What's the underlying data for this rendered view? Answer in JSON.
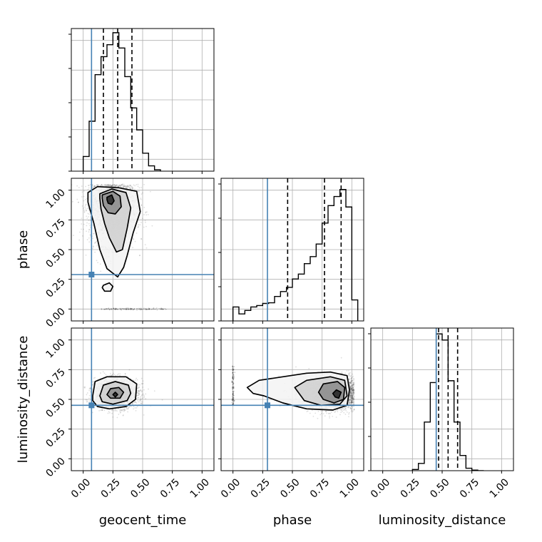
{
  "colors": {
    "truth": "#4682b4",
    "hist": "#000000",
    "grid": "#b0b0b0",
    "scatter": "#000000"
  },
  "chart_data": {
    "type": "corner",
    "parameters": [
      "geocent_time",
      "phase",
      "luminosity_distance"
    ],
    "truths": [
      0.07,
      0.29,
      0.45
    ],
    "axis_range": [
      -0.1,
      1.1
    ],
    "ticks": [
      0.0,
      0.25,
      0.5,
      0.75,
      1.0
    ],
    "tick_labels": [
      "0.00",
      "0.25",
      "0.50",
      "0.75",
      "1.00"
    ],
    "grid": true,
    "histograms": [
      {
        "param": "geocent_time",
        "bin_edges": [
          0.0,
          0.05,
          0.1,
          0.15,
          0.2,
          0.25,
          0.3,
          0.35,
          0.4,
          0.45,
          0.5,
          0.55,
          0.6,
          0.65
        ],
        "counts": [
          22,
          75,
          145,
          172,
          190,
          208,
          185,
          142,
          95,
          62,
          27,
          8,
          2
        ],
        "ymax": 210,
        "quantiles": [
          0.17,
          0.29,
          0.41
        ]
      },
      {
        "param": "phase",
        "bin_edges": [
          0.0,
          0.05,
          0.1,
          0.15,
          0.2,
          0.25,
          0.3,
          0.35,
          0.4,
          0.45,
          0.5,
          0.55,
          0.6,
          0.65,
          0.7,
          0.75,
          0.8,
          0.85,
          0.9,
          0.95,
          1.0,
          1.05
        ],
        "counts": [
          20,
          10,
          15,
          20,
          22,
          25,
          26,
          35,
          42,
          48,
          60,
          67,
          82,
          92,
          110,
          140,
          165,
          178,
          188,
          163,
          30
        ],
        "ymax": 200,
        "quantiles": [
          0.46,
          0.77,
          0.91
        ]
      },
      {
        "param": "luminosity_distance",
        "bin_edges": [
          0.25,
          0.3,
          0.35,
          0.4,
          0.45,
          0.5,
          0.55,
          0.6,
          0.65,
          0.7,
          0.75,
          0.8,
          0.85
        ],
        "counts": [
          2,
          12,
          80,
          145,
          225,
          215,
          148,
          80,
          25,
          4,
          1,
          0
        ],
        "ymax": 230,
        "quantiles": [
          0.47,
          0.55,
          0.63
        ]
      }
    ],
    "contour_panels": [
      {
        "x": "geocent_time",
        "y": "phase",
        "center": [
          0.25,
          0.86
        ],
        "spread": [
          0.1,
          0.16
        ],
        "points": 2400,
        "levels": [
          [
            [
              0.04,
              0.98
            ],
            [
              0.12,
              1.03
            ],
            [
              0.3,
              1.02
            ],
            [
              0.45,
              0.99
            ],
            [
              0.48,
              0.82
            ],
            [
              0.42,
              0.64
            ],
            [
              0.37,
              0.45
            ],
            [
              0.34,
              0.35
            ],
            [
              0.29,
              0.27
            ],
            [
              0.2,
              0.34
            ],
            [
              0.14,
              0.5
            ],
            [
              0.09,
              0.72
            ],
            [
              0.04,
              0.9
            ]
          ],
          [
            [
              0.14,
              0.97
            ],
            [
              0.24,
              1.01
            ],
            [
              0.36,
              0.98
            ],
            [
              0.4,
              0.85
            ],
            [
              0.37,
              0.68
            ],
            [
              0.33,
              0.5
            ],
            [
              0.28,
              0.48
            ],
            [
              0.22,
              0.6
            ],
            [
              0.18,
              0.72
            ],
            [
              0.15,
              0.84
            ],
            [
              0.14,
              0.93
            ]
          ],
          [
            [
              0.16,
              0.96
            ],
            [
              0.25,
              0.99
            ],
            [
              0.31,
              0.95
            ],
            [
              0.32,
              0.86
            ],
            [
              0.27,
              0.8
            ],
            [
              0.21,
              0.81
            ],
            [
              0.17,
              0.87
            ],
            [
              0.16,
              0.93
            ]
          ],
          [
            [
              0.2,
              0.94
            ],
            [
              0.24,
              0.96
            ],
            [
              0.26,
              0.91
            ],
            [
              0.24,
              0.88
            ],
            [
              0.21,
              0.89
            ],
            [
              0.2,
              0.92
            ]
          ],
          [
            [
              0.17,
              0.2
            ],
            [
              0.22,
              0.22
            ],
            [
              0.25,
              0.19
            ],
            [
              0.23,
              0.15
            ],
            [
              0.18,
              0.15
            ],
            [
              0.16,
              0.18
            ]
          ]
        ]
      },
      {
        "x": "geocent_time",
        "y": "luminosity_distance",
        "center": [
          0.28,
          0.55
        ],
        "spread": [
          0.09,
          0.06
        ],
        "points": 2400,
        "levels": [
          [
            [
              0.08,
              0.53
            ],
            [
              0.1,
              0.65
            ],
            [
              0.2,
              0.69
            ],
            [
              0.36,
              0.69
            ],
            [
              0.45,
              0.63
            ],
            [
              0.44,
              0.5
            ],
            [
              0.36,
              0.44
            ],
            [
              0.22,
              0.42
            ],
            [
              0.12,
              0.44
            ],
            [
              0.08,
              0.49
            ]
          ],
          [
            [
              0.14,
              0.53
            ],
            [
              0.17,
              0.62
            ],
            [
              0.27,
              0.65
            ],
            [
              0.38,
              0.62
            ],
            [
              0.4,
              0.55
            ],
            [
              0.37,
              0.49
            ],
            [
              0.25,
              0.46
            ],
            [
              0.16,
              0.48
            ]
          ],
          [
            [
              0.2,
              0.54
            ],
            [
              0.23,
              0.59
            ],
            [
              0.3,
              0.6
            ],
            [
              0.34,
              0.56
            ],
            [
              0.31,
              0.51
            ],
            [
              0.23,
              0.51
            ]
          ],
          [
            [
              0.25,
              0.54
            ],
            [
              0.27,
              0.56
            ],
            [
              0.29,
              0.54
            ],
            [
              0.27,
              0.52
            ]
          ]
        ]
      },
      {
        "x": "phase",
        "y": "luminosity_distance",
        "center": [
          0.86,
          0.55
        ],
        "spread": [
          0.14,
          0.07
        ],
        "points": 2400,
        "levels": [
          [
            [
              0.12,
              0.6
            ],
            [
              0.22,
              0.66
            ],
            [
              0.42,
              0.69
            ],
            [
              0.62,
              0.72
            ],
            [
              0.82,
              0.73
            ],
            [
              0.96,
              0.7
            ],
            [
              0.98,
              0.58
            ],
            [
              0.96,
              0.45
            ],
            [
              0.84,
              0.41
            ],
            [
              0.62,
              0.42
            ],
            [
              0.42,
              0.47
            ],
            [
              0.26,
              0.53
            ],
            [
              0.17,
              0.55
            ]
          ],
          [
            [
              0.52,
              0.6
            ],
            [
              0.62,
              0.66
            ],
            [
              0.82,
              0.69
            ],
            [
              0.94,
              0.66
            ],
            [
              0.96,
              0.53
            ],
            [
              0.9,
              0.46
            ],
            [
              0.74,
              0.45
            ],
            [
              0.6,
              0.49
            ]
          ],
          [
            [
              0.72,
              0.56
            ],
            [
              0.76,
              0.63
            ],
            [
              0.88,
              0.65
            ],
            [
              0.94,
              0.6
            ],
            [
              0.93,
              0.5
            ],
            [
              0.85,
              0.47
            ],
            [
              0.76,
              0.5
            ]
          ],
          [
            [
              0.84,
              0.55
            ],
            [
              0.87,
              0.58
            ],
            [
              0.91,
              0.56
            ],
            [
              0.89,
              0.51
            ],
            [
              0.86,
              0.52
            ]
          ]
        ]
      }
    ]
  }
}
